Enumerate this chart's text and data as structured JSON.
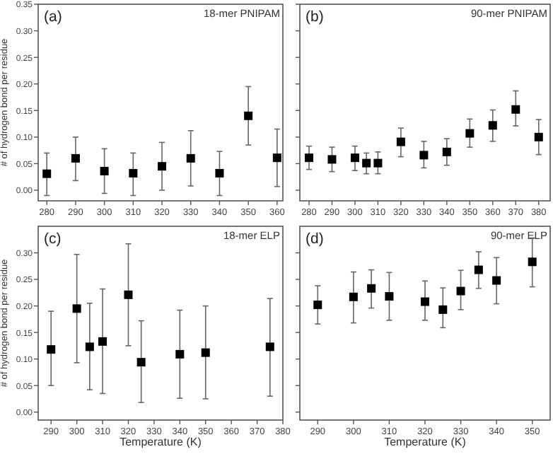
{
  "chart_data": [
    {
      "type": "scatter",
      "title": "(a)",
      "subtitle": "18-mer PNIPAM",
      "ylabel": "# of hydrogen bond per residue",
      "marker": "square",
      "xlim": [
        277,
        362
      ],
      "xticks": [
        280,
        290,
        300,
        310,
        320,
        330,
        340,
        350,
        360
      ],
      "ylim": [
        -0.02,
        0.35
      ],
      "yticks": [
        {
          "value": 0,
          "label": "0.00"
        },
        0.05,
        {
          "value": 0.1,
          "label": "0.10"
        },
        0.15,
        {
          "value": 0.2,
          "label": "0.20"
        },
        0.25,
        {
          "value": 0.3,
          "label": "0.30"
        },
        0.35
      ],
      "grid": false,
      "series": [
        {
          "color": "#000000",
          "x": [
            280,
            290,
            300,
            310,
            320,
            330,
            340,
            350,
            360
          ],
          "values": [
            0.031,
            0.06,
            0.036,
            0.032,
            0.045,
            0.06,
            0.032,
            0.14,
            0.061
          ],
          "errors": [
            [
              -0.01,
              0.07
            ],
            [
              0.018,
              0.1
            ],
            [
              -0.006,
              0.078
            ],
            [
              -0.01,
              0.07
            ],
            [
              0.0,
              0.09
            ],
            [
              0.008,
              0.112
            ],
            [
              -0.01,
              0.073
            ],
            [
              0.085,
              0.195
            ],
            [
              0.007,
              0.115
            ]
          ]
        }
      ]
    },
    {
      "type": "scatter",
      "title": "(b)",
      "subtitle": "90-mer PNIPAM",
      "marker": "square",
      "tick_labels": "x",
      "xlim": [
        276,
        385
      ],
      "xticks": [
        280,
        290,
        300,
        310,
        320,
        330,
        340,
        350,
        360,
        370,
        380
      ],
      "ylim": [
        -0.02,
        0.35
      ],
      "yticks": [
        0,
        0.05,
        0.1,
        0.15,
        0.2,
        0.25,
        0.3,
        0.35
      ],
      "grid": false,
      "series": [
        {
          "color": "#000000",
          "x": [
            280,
            290,
            300,
            305,
            310,
            320,
            330,
            340,
            350,
            360,
            370,
            380
          ],
          "values": [
            0.061,
            0.058,
            0.061,
            0.051,
            0.051,
            0.091,
            0.066,
            0.072,
            0.107,
            0.122,
            0.152,
            0.1
          ],
          "errors": [
            [
              0.039,
              0.083
            ],
            [
              0.035,
              0.081
            ],
            [
              0.037,
              0.083
            ],
            [
              0.031,
              0.07
            ],
            [
              0.031,
              0.072
            ],
            [
              0.063,
              0.117
            ],
            [
              0.042,
              0.092
            ],
            [
              0.047,
              0.097
            ],
            [
              0.081,
              0.134
            ],
            [
              0.092,
              0.151
            ],
            [
              0.121,
              0.187
            ],
            [
              0.067,
              0.133
            ]
          ]
        }
      ]
    },
    {
      "type": "scatter",
      "title": "(c)",
      "subtitle": "18-mer ELP",
      "xlabel": "Temperature (K)",
      "ylabel": "# of hydrogen bond per residue",
      "marker": "square",
      "xlim": [
        285,
        380
      ],
      "xticks": [
        290,
        300,
        310,
        320,
        330,
        340,
        350,
        360,
        370,
        380
      ],
      "ylim": [
        -0.015,
        0.35
      ],
      "yticks": [
        {
          "value": 0,
          "label": "0.00"
        },
        0.05,
        {
          "value": 0.1,
          "label": "0.10"
        },
        0.15,
        {
          "value": 0.2,
          "label": "0.20"
        },
        0.25,
        {
          "value": 0.3,
          "label": "0.30"
        }
      ],
      "grid": false,
      "series": [
        {
          "color": "#000000",
          "x": [
            290,
            300,
            305,
            310,
            320,
            325,
            340,
            350,
            375
          ],
          "values": [
            0.118,
            0.195,
            0.123,
            0.133,
            0.221,
            0.094,
            0.109,
            0.112,
            0.123
          ],
          "errors": [
            [
              0.05,
              0.19
            ],
            [
              0.093,
              0.297
            ],
            [
              0.042,
              0.205
            ],
            [
              0.035,
              0.232
            ],
            [
              0.125,
              0.317
            ],
            [
              0.018,
              0.172
            ],
            [
              0.026,
              0.192
            ],
            [
              0.025,
              0.2
            ],
            [
              0.03,
              0.214
            ]
          ]
        }
      ]
    },
    {
      "type": "scatter",
      "title": "(d)",
      "subtitle": "90-mer ELP",
      "xlabel": "Temperature (K)",
      "marker": "square",
      "tick_labels": "x",
      "xlim": [
        285,
        355
      ],
      "xticks": [
        290,
        300,
        310,
        320,
        330,
        340,
        350
      ],
      "ylim": [
        -0.015,
        0.35
      ],
      "yticks": [
        0,
        0.05,
        0.1,
        0.15,
        0.2,
        0.25,
        0.3
      ],
      "grid": false,
      "series": [
        {
          "color": "#000000",
          "x": [
            290,
            300,
            305,
            310,
            320,
            325,
            330,
            335,
            340,
            350
          ],
          "values": [
            0.202,
            0.217,
            0.233,
            0.218,
            0.208,
            0.193,
            0.228,
            0.268,
            0.248,
            0.283
          ],
          "errors": [
            [
              0.166,
              0.238
            ],
            [
              0.168,
              0.264
            ],
            [
              0.196,
              0.268
            ],
            [
              0.173,
              0.263
            ],
            [
              0.173,
              0.247
            ],
            [
              0.159,
              0.234
            ],
            [
              0.193,
              0.267
            ],
            [
              0.233,
              0.302
            ],
            [
              0.204,
              0.291
            ],
            [
              0.236,
              0.328
            ]
          ]
        }
      ]
    }
  ]
}
